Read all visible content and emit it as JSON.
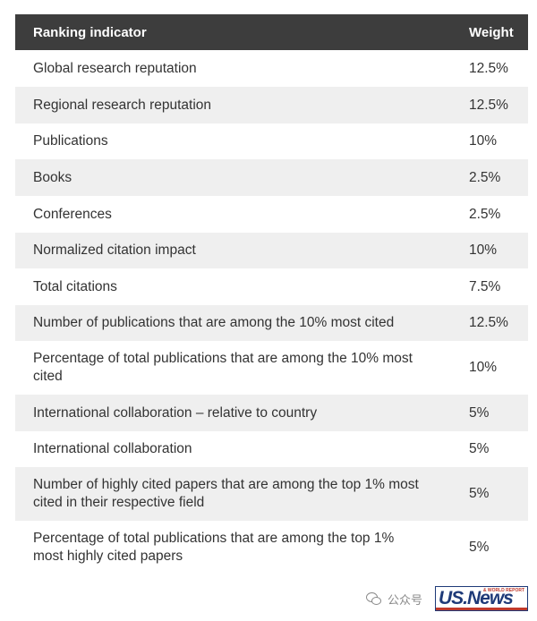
{
  "table": {
    "header": {
      "indicator": "Ranking indicator",
      "weight": "Weight"
    },
    "rows": [
      {
        "indicator": "Global research reputation",
        "weight": "12.5%"
      },
      {
        "indicator": "Regional research reputation",
        "weight": "12.5%"
      },
      {
        "indicator": "Publications",
        "weight": "10%"
      },
      {
        "indicator": "Books",
        "weight": "2.5%"
      },
      {
        "indicator": "Conferences",
        "weight": "2.5%"
      },
      {
        "indicator": "Normalized citation impact",
        "weight": "10%"
      },
      {
        "indicator": "Total citations",
        "weight": "7.5%"
      },
      {
        "indicator": "Number of publications that are among the 10% most cited",
        "weight": "12.5%"
      },
      {
        "indicator": "Percentage of total publications that are among the 10% most cited",
        "weight": "10%"
      },
      {
        "indicator": "International collaboration – relative to country",
        "weight": "5%"
      },
      {
        "indicator": "International collaboration",
        "weight": "5%"
      },
      {
        "indicator": "Number of highly cited papers that are among the top 1% most cited in their respective field",
        "weight": "5%"
      },
      {
        "indicator": "Percentage of total publications that are among the top 1% most highly cited papers",
        "weight": "5%"
      }
    ]
  },
  "footer": {
    "wechat_label": "公众号",
    "logo_text": "US.News",
    "logo_sub": "& WORLD REPORT"
  },
  "colors": {
    "header_bg": "#3d3d3d",
    "row_shade": "#efefef",
    "logo_blue": "#1e3a78",
    "logo_red": "#c0392b"
  }
}
